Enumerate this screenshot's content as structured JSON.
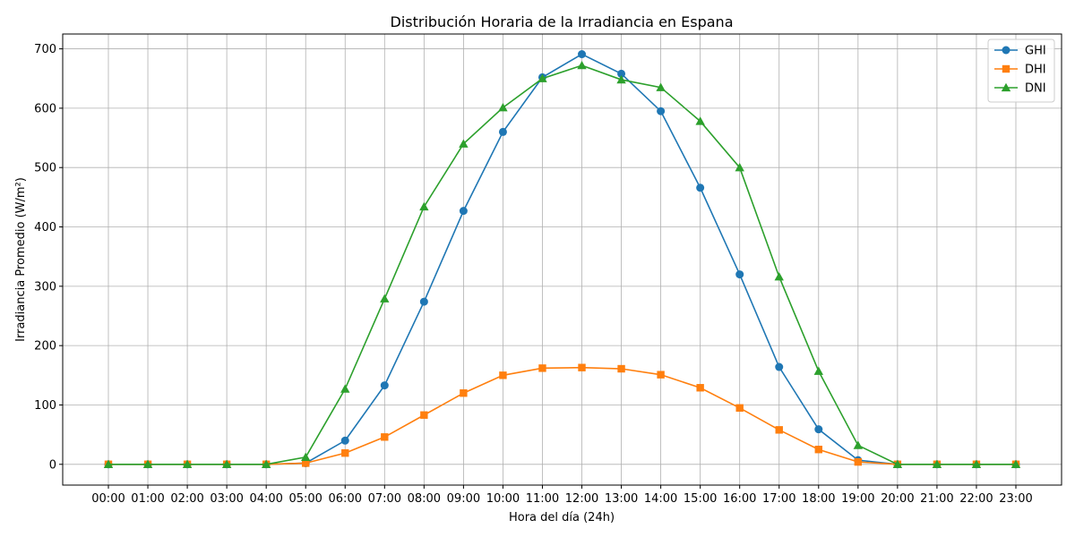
{
  "chart_data": {
    "type": "line",
    "title": "Distribución Horaria de la Irradiancia en Espana",
    "xlabel": "Hora del día (24h)",
    "ylabel": "Irradiancia Promedio (W/m²)",
    "ylim": [
      -35,
      725
    ],
    "yticks": [
      0,
      100,
      200,
      300,
      400,
      500,
      600,
      700
    ],
    "grid": true,
    "legend_position": "top-right",
    "categories": [
      "00:00",
      "01:00",
      "02:00",
      "03:00",
      "04:00",
      "05:00",
      "06:00",
      "07:00",
      "08:00",
      "09:00",
      "10:00",
      "11:00",
      "12:00",
      "13:00",
      "14:00",
      "15:00",
      "16:00",
      "17:00",
      "18:00",
      "19:00",
      "20:00",
      "21:00",
      "22:00",
      "23:00"
    ],
    "series": [
      {
        "name": "GHI",
        "color": "#1f77b4",
        "marker": "circle",
        "values": [
          0,
          0,
          0,
          0,
          0,
          2,
          40,
          133,
          274,
          427,
          560,
          652,
          691,
          658,
          595,
          466,
          320,
          164,
          59,
          7,
          0,
          0,
          0,
          0
        ]
      },
      {
        "name": "DHI",
        "color": "#ff7f0e",
        "marker": "square",
        "values": [
          0,
          0,
          0,
          0,
          0,
          2,
          19,
          46,
          83,
          120,
          150,
          162,
          163,
          161,
          151,
          129,
          95,
          58,
          25,
          4,
          0,
          0,
          0,
          0
        ]
      },
      {
        "name": "DNI",
        "color": "#2ca02c",
        "marker": "triangle",
        "values": [
          0,
          0,
          0,
          0,
          0,
          12,
          127,
          279,
          434,
          540,
          601,
          650,
          672,
          648,
          635,
          578,
          500,
          316,
          157,
          32,
          0,
          0,
          0,
          0
        ]
      }
    ]
  }
}
